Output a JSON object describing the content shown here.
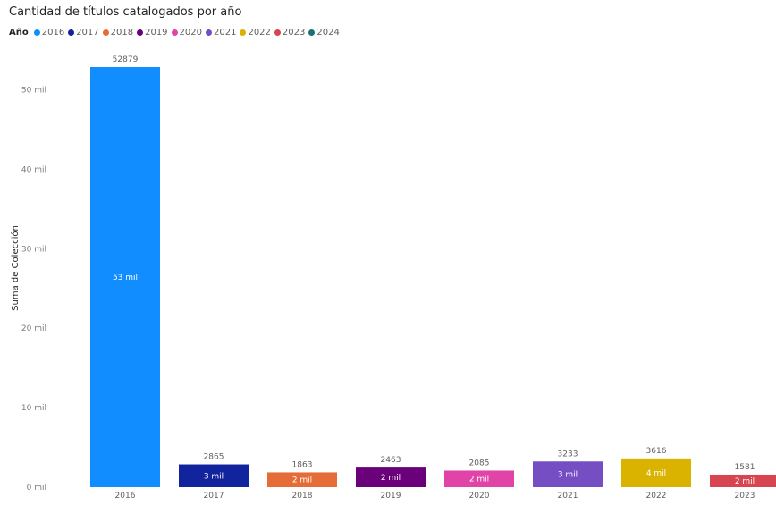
{
  "chart_data": {
    "type": "bar",
    "title": "Cantidad de títulos catalogados por año",
    "legend_title": "Año",
    "legend_position": "top-left",
    "ylabel": "Suma de Colección",
    "xlabel": "",
    "ylim": [
      0,
      53000
    ],
    "yticks": [
      0,
      10000,
      20000,
      30000,
      40000,
      50000
    ],
    "ytick_labels": [
      "0 mil",
      "10 mil",
      "20 mil",
      "30 mil",
      "40 mil",
      "50 mil"
    ],
    "grid": false,
    "categories": [
      "2016",
      "2017",
      "2018",
      "2019",
      "2020",
      "2021",
      "2022",
      "2023"
    ],
    "legend_entries": [
      "2016",
      "2017",
      "2018",
      "2019",
      "2020",
      "2021",
      "2022",
      "2023",
      "2024"
    ],
    "legend_colors": [
      "#118DFF",
      "#12239E",
      "#E66C37",
      "#6B007B",
      "#E044A7",
      "#744EC2",
      "#D9B300",
      "#D64550",
      "#197278"
    ],
    "values": [
      52879,
      2865,
      1863,
      2463,
      2085,
      3233,
      3616,
      1581
    ],
    "top_labels": [
      "52879",
      "2865",
      "1863",
      "2463",
      "2085",
      "3233",
      "3616",
      "1581"
    ],
    "inner_labels": [
      "53 mil",
      "3 mil",
      "2 mil",
      "2 mil",
      "2 mil",
      "3 mil",
      "4 mil",
      "2 mil"
    ],
    "colors": [
      "#118DFF",
      "#12239E",
      "#E66C37",
      "#6B007B",
      "#E044A7",
      "#744EC2",
      "#D9B300",
      "#D64550"
    ]
  }
}
